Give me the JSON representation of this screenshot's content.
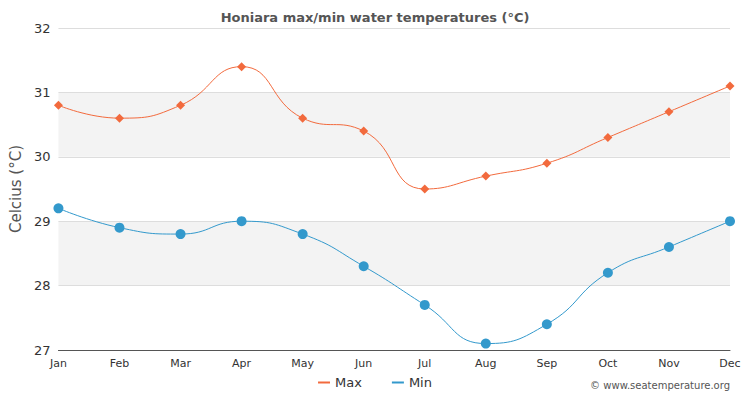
{
  "chart_data": {
    "type": "line",
    "title": "Honiara max/min water temperatures (°C)",
    "y_label": "Celcius (°C)",
    "categories": [
      "Jan",
      "Feb",
      "Mar",
      "Apr",
      "May",
      "Jun",
      "Jul",
      "Aug",
      "Sep",
      "Oct",
      "Nov",
      "Dec"
    ],
    "series": [
      {
        "name": "Max",
        "color": "#f26a3d",
        "marker": "diamond",
        "line_style": "solid",
        "values": [
          30.8,
          30.6,
          30.8,
          31.4,
          30.6,
          30.4,
          29.5,
          29.7,
          29.9,
          30.3,
          30.7,
          31.1
        ]
      },
      {
        "name": "Min",
        "color": "#3399cc",
        "marker": "circle",
        "line_style": "solid",
        "values": [
          29.2,
          28.9,
          28.8,
          29.0,
          28.8,
          28.3,
          27.7,
          27.1,
          27.4,
          28.2,
          28.6,
          29.0
        ]
      }
    ],
    "ylim": [
      27,
      32
    ],
    "yticks": [
      27,
      28,
      29,
      30,
      31,
      32
    ],
    "grid": true,
    "legend": "bottom",
    "annotations": [
      "© www.seatemperature.org"
    ]
  }
}
